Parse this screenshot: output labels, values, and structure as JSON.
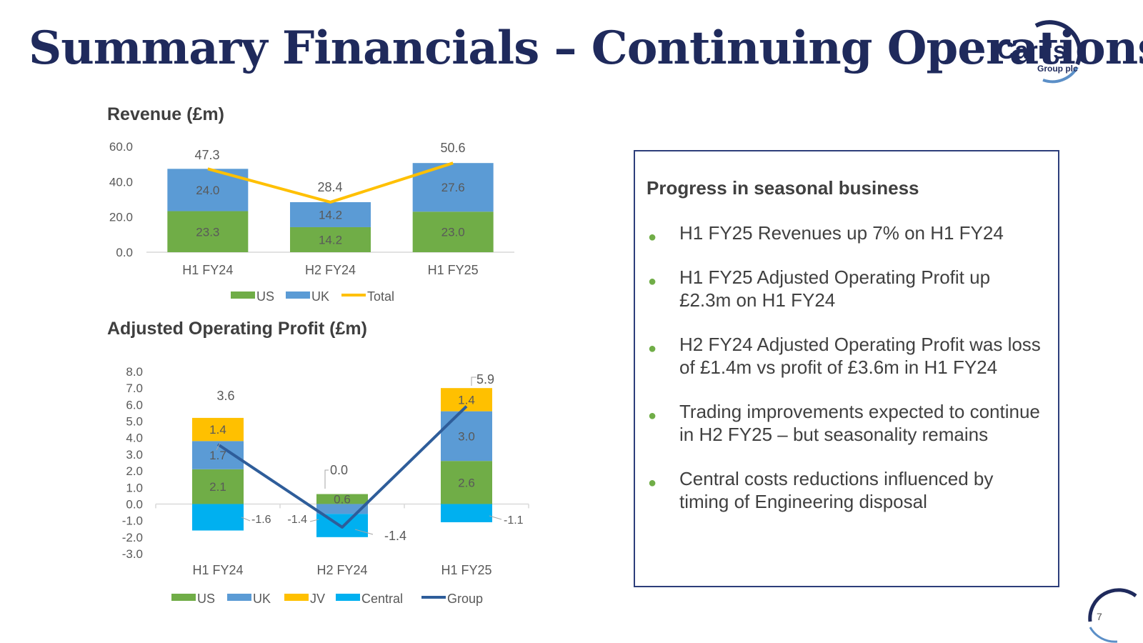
{
  "page": {
    "title": "Summary Financials – Continuing Operations",
    "page_number": "7"
  },
  "logo": {
    "text": "Carr's",
    "subtext": "Group plc"
  },
  "colors": {
    "us": "#70ad47",
    "uk": "#5b9bd5",
    "jv": "#ffc000",
    "central": "#00b0f0",
    "total_line": "#ffc000",
    "group_line": "#2e5d9a",
    "navy": "#1f2a5c"
  },
  "panel": {
    "heading": "Progress in seasonal business",
    "bullets": [
      "H1 FY25 Revenues up 7% on H1 FY24",
      "H1 FY25 Adjusted Operating Profit up £2.3m on H1 FY24",
      "H2 FY24 Adjusted Operating Profit was loss of £1.4m vs profit of £3.6m in H1 FY24",
      "Trading improvements expected to continue in H2 FY25 – but seasonality remains",
      "Central costs reductions influenced by timing of Engineering disposal"
    ]
  },
  "chart_data": [
    {
      "type": "bar",
      "stacked": true,
      "title": "Revenue (£m)",
      "categories": [
        "H1 FY24",
        "H2 FY24",
        "H1 FY25"
      ],
      "series": [
        {
          "name": "US",
          "values": [
            23.3,
            14.2,
            23.0
          ],
          "labels": [
            "23.3",
            "14.2",
            "23.0"
          ]
        },
        {
          "name": "UK",
          "values": [
            24.0,
            14.2,
            27.6
          ],
          "labels": [
            "24.0",
            "14.2",
            "27.6"
          ]
        }
      ],
      "line": {
        "name": "Total",
        "values": [
          47.3,
          28.4,
          50.6
        ],
        "labels": [
          "47.3",
          "28.4",
          "50.6"
        ]
      },
      "ylim": [
        0,
        60
      ],
      "yticks": [
        "0.0",
        "20.0",
        "40.0",
        "60.0"
      ],
      "legend": [
        "US",
        "UK",
        "Total"
      ]
    },
    {
      "type": "bar",
      "stacked": true,
      "title": "Adjusted Operating Profit (£m)",
      "categories": [
        "H1 FY24",
        "H2 FY24",
        "H1 FY25"
      ],
      "series": [
        {
          "name": "US",
          "values": [
            2.1,
            0.6,
            2.6
          ],
          "labels": [
            "2.1",
            "0.6",
            "2.6"
          ]
        },
        {
          "name": "UK",
          "values": [
            1.7,
            -0.6,
            3.0
          ],
          "labels": [
            "1.7",
            "",
            "3.0"
          ]
        },
        {
          "name": "JV",
          "values": [
            1.4,
            0.0,
            1.4
          ],
          "labels": [
            "1.4",
            "",
            "1.4"
          ]
        },
        {
          "name": "Central",
          "values": [
            -1.6,
            -1.4,
            -1.1
          ],
          "labels": [
            "-1.6",
            "-1.4",
            "-1.1"
          ]
        }
      ],
      "line": {
        "name": "Group",
        "values": [
          3.6,
          -1.4,
          5.9
        ],
        "labels": [
          "3.6",
          "-1.4",
          "5.9"
        ]
      },
      "extra_label": "0.0",
      "ylim": [
        -3,
        8
      ],
      "yticks": [
        "-3.0",
        "-2.0",
        "-1.0",
        "0.0",
        "1.0",
        "2.0",
        "3.0",
        "4.0",
        "5.0",
        "6.0",
        "7.0",
        "8.0"
      ],
      "legend": [
        "US",
        "UK",
        "JV",
        "Central",
        "Group"
      ]
    }
  ]
}
